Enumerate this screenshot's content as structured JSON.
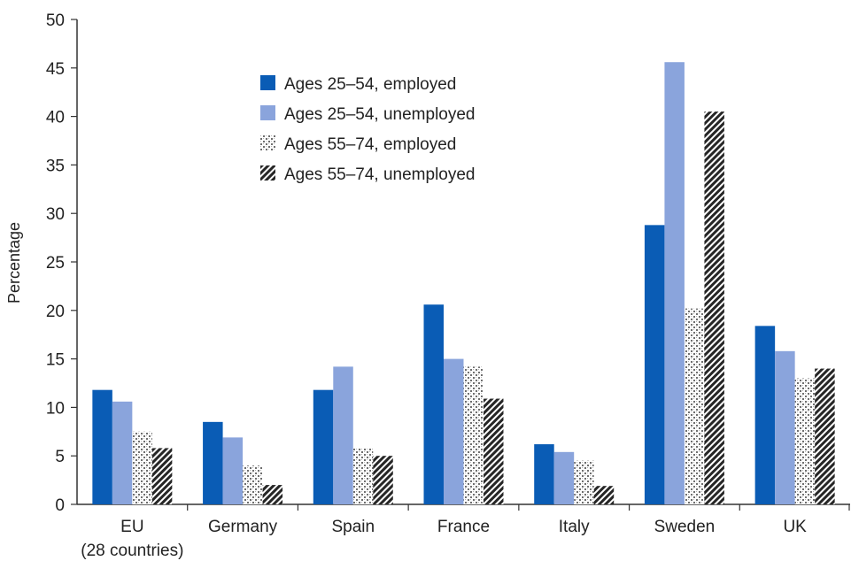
{
  "chart_data": {
    "type": "bar",
    "title": "",
    "xlabel": "",
    "ylabel": "Percentage",
    "ylim": [
      0,
      50
    ],
    "yticks": [
      0,
      5,
      10,
      15,
      20,
      25,
      30,
      35,
      40,
      45,
      50
    ],
    "grid": false,
    "legend_position": "top-center",
    "categories": [
      {
        "label": "EU",
        "sublabel": "(28 countries)"
      },
      {
        "label": "Germany"
      },
      {
        "label": "Spain"
      },
      {
        "label": "France"
      },
      {
        "label": "Italy"
      },
      {
        "label": "Sweden"
      },
      {
        "label": "UK"
      }
    ],
    "series": [
      {
        "name": "Ages 25–54, employed",
        "color": "#0a5cb5",
        "pattern": "solid",
        "values": [
          11.8,
          8.5,
          11.8,
          20.6,
          6.2,
          28.8,
          18.4
        ]
      },
      {
        "name": "Ages 25–54, unemployed",
        "color": "#8aa4dc",
        "pattern": "solid",
        "values": [
          10.6,
          6.9,
          14.2,
          15.0,
          5.4,
          45.6,
          15.8
        ]
      },
      {
        "name": "Ages 55–74, employed",
        "color": "#7a7a7a",
        "pattern": "dotted",
        "values": [
          7.5,
          4.0,
          5.8,
          14.2,
          4.5,
          20.2,
          13.0
        ]
      },
      {
        "name": "Ages 55–74, unemployed",
        "color": "#222222",
        "pattern": "hatched",
        "values": [
          5.8,
          2.0,
          5.0,
          10.9,
          1.9,
          40.5,
          14.0
        ]
      }
    ]
  }
}
